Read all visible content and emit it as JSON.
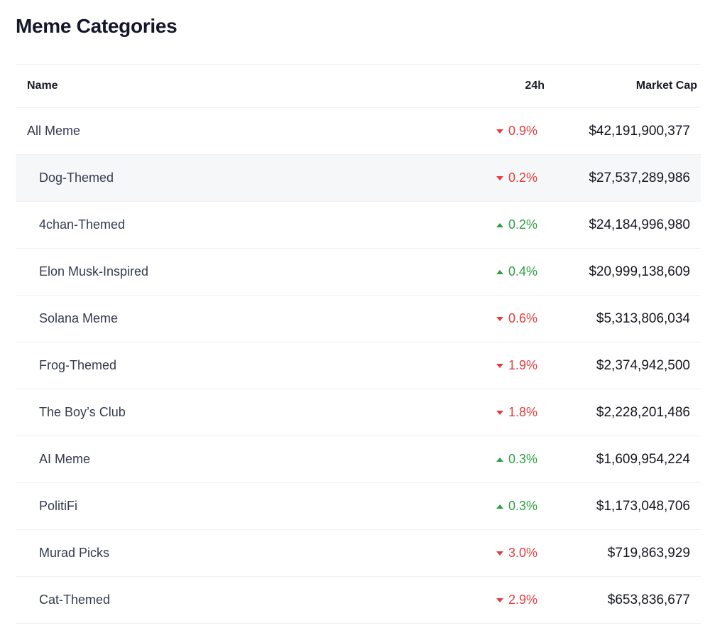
{
  "page": {
    "title": "Meme Categories"
  },
  "colors": {
    "up": "#2f9e44",
    "down": "#e23d3d",
    "highlight_row_bg": "#f6f7f9"
  },
  "icons": {
    "up": "triangle-up-icon",
    "down": "triangle-down-icon"
  },
  "table": {
    "columns": {
      "name": "Name",
      "change": "24h",
      "market_cap": "Market Cap"
    },
    "rows": [
      {
        "name": "All Meme",
        "direction": "down",
        "change": "0.9%",
        "market_cap": "$42,191,900,377",
        "indent": false,
        "highlighted": false
      },
      {
        "name": "Dog-Themed",
        "direction": "down",
        "change": "0.2%",
        "market_cap": "$27,537,289,986",
        "indent": true,
        "highlighted": true
      },
      {
        "name": "4chan-Themed",
        "direction": "up",
        "change": "0.2%",
        "market_cap": "$24,184,996,980",
        "indent": true,
        "highlighted": false
      },
      {
        "name": "Elon Musk-Inspired",
        "direction": "up",
        "change": "0.4%",
        "market_cap": "$20,999,138,609",
        "indent": true,
        "highlighted": false
      },
      {
        "name": "Solana Meme",
        "direction": "down",
        "change": "0.6%",
        "market_cap": "$5,313,806,034",
        "indent": true,
        "highlighted": false
      },
      {
        "name": "Frog-Themed",
        "direction": "down",
        "change": "1.9%",
        "market_cap": "$2,374,942,500",
        "indent": true,
        "highlighted": false
      },
      {
        "name": "The Boy’s Club",
        "direction": "down",
        "change": "1.8%",
        "market_cap": "$2,228,201,486",
        "indent": true,
        "highlighted": false
      },
      {
        "name": "AI Meme",
        "direction": "up",
        "change": "0.3%",
        "market_cap": "$1,609,954,224",
        "indent": true,
        "highlighted": false
      },
      {
        "name": "PolitiFi",
        "direction": "up",
        "change": "0.3%",
        "market_cap": "$1,173,048,706",
        "indent": true,
        "highlighted": false
      },
      {
        "name": "Murad Picks",
        "direction": "down",
        "change": "3.0%",
        "market_cap": "$719,863,929",
        "indent": true,
        "highlighted": false
      },
      {
        "name": "Cat-Themed",
        "direction": "down",
        "change": "2.9%",
        "market_cap": "$653,836,677",
        "indent": true,
        "highlighted": false
      }
    ]
  }
}
